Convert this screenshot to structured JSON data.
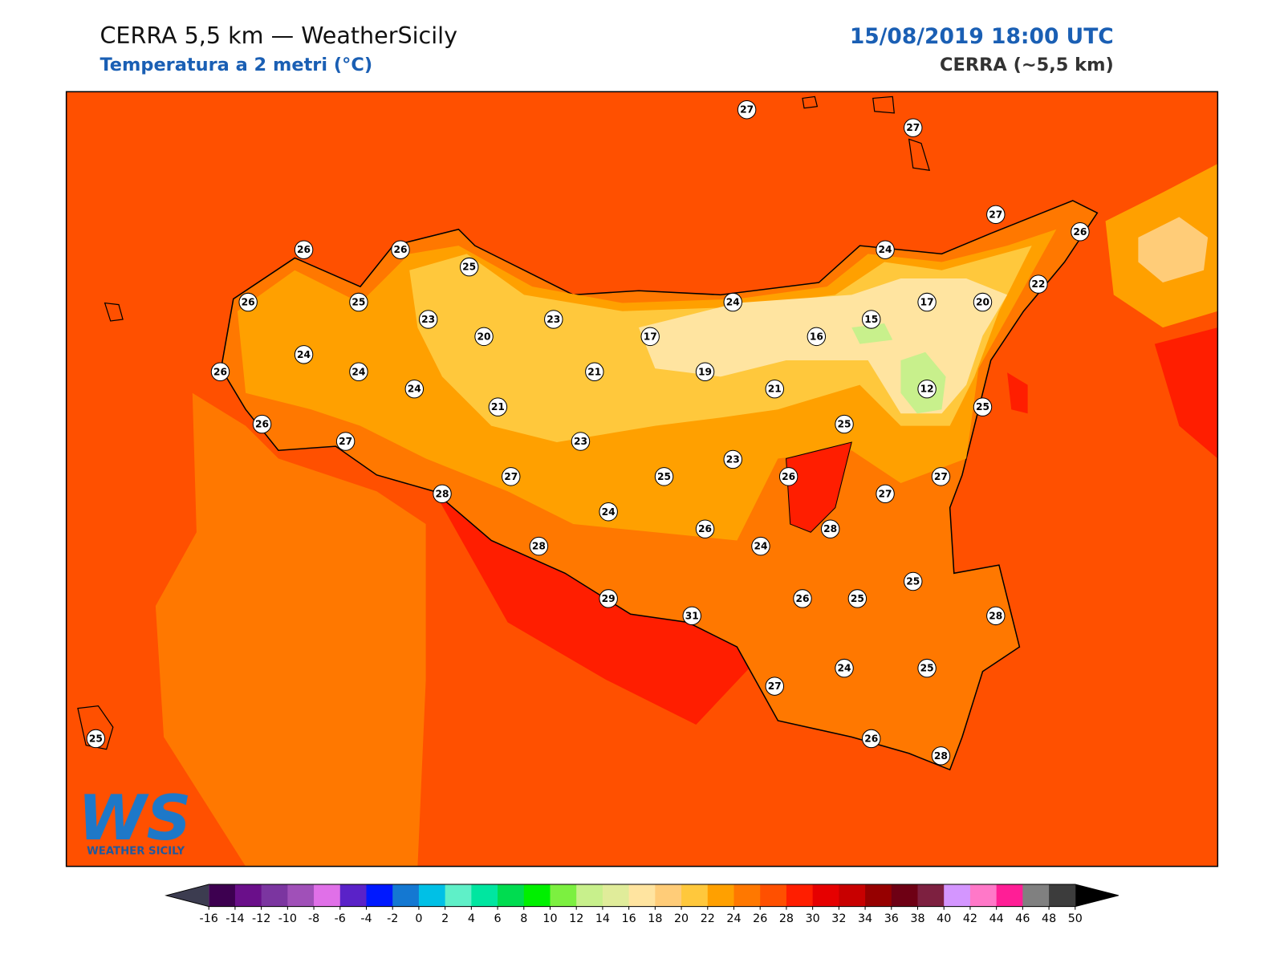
{
  "header": {
    "title": "CERRA 5,5 km — WeatherSicily",
    "subtitle": "Temperatura a 2 metri (°C)",
    "date": "15/08/2019 18:00 UTC",
    "model": "CERRA (~5,5 km)"
  },
  "stations": [
    27,
    27,
    27,
    26,
    26,
    26,
    25,
    24,
    22,
    26,
    25,
    24,
    17,
    20,
    23,
    23,
    15,
    20,
    17,
    16,
    24,
    26,
    24,
    21,
    19,
    24,
    21,
    12,
    21,
    25,
    26,
    25,
    27,
    23,
    23,
    27,
    25,
    26,
    27,
    28,
    27,
    24,
    26,
    28,
    28,
    24,
    25,
    29,
    26,
    25,
    28,
    31,
    24,
    25,
    27,
    25,
    26,
    28
  ],
  "colorbar": {
    "ticks": [
      -16,
      -14,
      -12,
      -10,
      -8,
      -6,
      -4,
      -2,
      0,
      2,
      4,
      6,
      8,
      10,
      12,
      14,
      16,
      18,
      20,
      22,
      24,
      26,
      28,
      30,
      32,
      34,
      36,
      38,
      40,
      42,
      44,
      46,
      48,
      50
    ],
    "colors": [
      "#3d0050",
      "#6a0f8a",
      "#7b35a0",
      "#a050b8",
      "#e070e8",
      "#5a22c8",
      "#0019ff",
      "#1478d2",
      "#00c0e6",
      "#5ff0c8",
      "#00e6a0",
      "#00dc50",
      "#00f000",
      "#7cf040",
      "#c8f08c",
      "#e0ec9a",
      "#ffe4a0",
      "#ffcc78",
      "#ffc83c",
      "#ffa000",
      "#ff7800",
      "#ff5000",
      "#ff1e00",
      "#e60000",
      "#c80000",
      "#960000",
      "#6e0014",
      "#7d2040",
      "#d496ff",
      "#ff78c8",
      "#ff1e96",
      "#808080",
      "#3c3c3c"
    ],
    "under": "#3c3c50",
    "over": "#000000"
  },
  "logo": {
    "mark": "WS",
    "text": "WEATHER SICILY"
  }
}
